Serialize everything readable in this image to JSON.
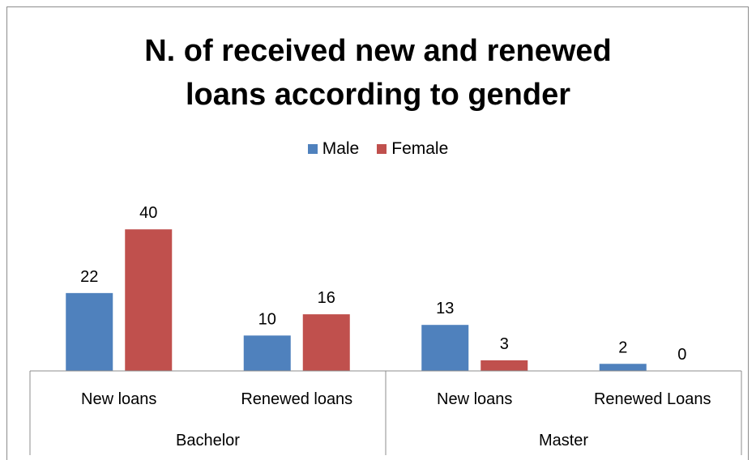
{
  "chart_data": {
    "type": "bar",
    "title_line1": "N. of received new and renewed",
    "title_line2": "loans according to gender",
    "groups": [
      {
        "name": "Bachelor",
        "categories": [
          "New loans",
          "Renewed loans"
        ]
      },
      {
        "name": "Master",
        "categories": [
          "New loans",
          "Renewed Loans"
        ]
      }
    ],
    "categories": [
      "New loans",
      "Renewed loans",
      "New loans",
      "Renewed Loans"
    ],
    "series": [
      {
        "name": "Male",
        "color": "#4f81bd",
        "values": [
          22,
          10,
          13,
          2
        ]
      },
      {
        "name": "Female",
        "color": "#c0504d",
        "values": [
          40,
          16,
          3,
          0
        ]
      }
    ],
    "ylim": [
      0,
      45
    ],
    "grid": false,
    "legend_position": "top"
  }
}
